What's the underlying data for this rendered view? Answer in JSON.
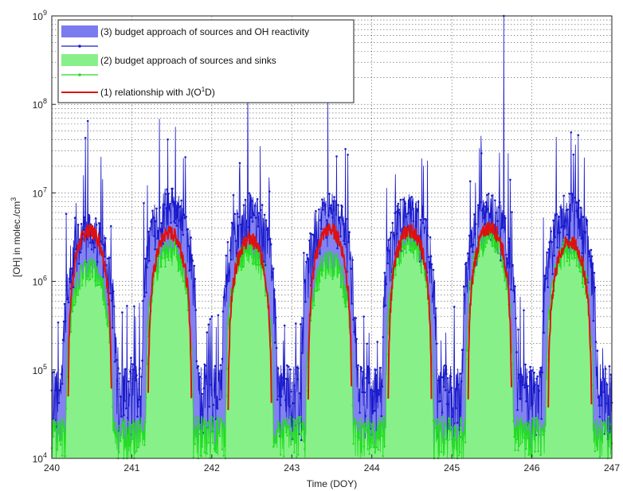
{
  "chart_data": {
    "type": "line",
    "xlabel": "Time (DOY)",
    "ylabel": "[OH] in molec./cm",
    "ylabel_sup": "3",
    "ylabel_units": "",
    "xlim": [
      240,
      247
    ],
    "ylim": [
      10000,
      1000000000
    ],
    "yscale": "log",
    "x_ticks": [
      240,
      241,
      242,
      243,
      244,
      245,
      246,
      247
    ],
    "y_ticks": [
      {
        "exp": 4,
        "base": "10",
        "sup": "4"
      },
      {
        "exp": 5,
        "base": "10",
        "sup": "5"
      },
      {
        "exp": 6,
        "base": "10",
        "sup": "6"
      },
      {
        "exp": 7,
        "base": "10",
        "sup": "7"
      },
      {
        "exp": 8,
        "base": "10",
        "sup": "8"
      },
      {
        "exp": 9,
        "base": "10",
        "sup": "9"
      }
    ],
    "grid": true,
    "legend_position": "top-left",
    "legend": [
      {
        "label": "(3) budget approach of sources and OH reactivity",
        "fill": "#7b7bf0",
        "line": "#1a1acc"
      },
      {
        "label": "(2) budget approach of sources and sinks",
        "fill": "#88f088",
        "line": "#22dd22"
      },
      {
        "label_pre": "(1) relationship with J(O",
        "label_sup": "1",
        "label_post": "D)",
        "line": "#dd1111"
      }
    ],
    "days": [
      240,
      241,
      242,
      243,
      244,
      245,
      246
    ],
    "series": [
      {
        "name": "(1) relationship with J(O1D)",
        "color": "#dd1111",
        "daily_peak": [
          3800000,
          3600000,
          3000000,
          3900000,
          3800000,
          4100000,
          2800000
        ],
        "sunrise_offset": 0.2,
        "sunset_offset": 0.75
      },
      {
        "name": "(2) budget approach of sources and sinks",
        "color": "#22dd22",
        "fill": "#88f088",
        "daily_peak": [
          1500000,
          2500000,
          2500000,
          1800000,
          3000000,
          3500000,
          2500000
        ],
        "night_level": 15000
      },
      {
        "name": "(3) budget approach of sources and OH reactivity",
        "color": "#1a1acc",
        "fill": "#7b7bf0",
        "daily_peak": [
          3000000,
          6000000,
          5000000,
          5000000,
          5000000,
          5000000,
          5000000
        ],
        "spikes": [
          {
            "x": 240.45,
            "y": 65000000
          },
          {
            "x": 242.45,
            "y": 150000000
          },
          {
            "x": 243.45,
            "y": 110000000
          },
          {
            "x": 245.65,
            "y": 1000000000
          },
          {
            "x": 246.58,
            "y": 45000000
          }
        ],
        "night_level": 40000
      }
    ]
  }
}
